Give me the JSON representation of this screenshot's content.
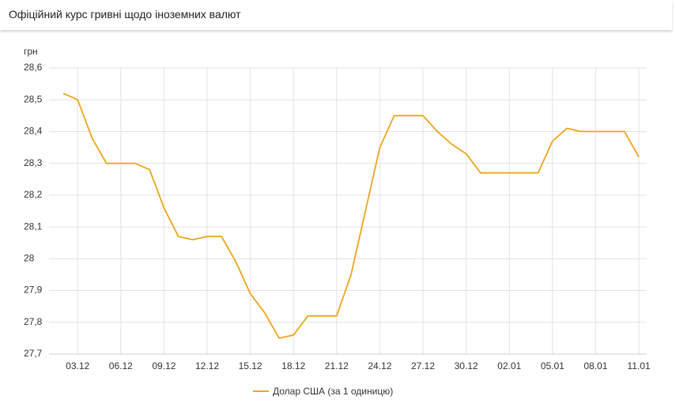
{
  "header": {
    "title": "Офіційний курс гривні щодо іноземних валют"
  },
  "chart_data": {
    "type": "line",
    "y_unit": "грн",
    "categories": [
      null,
      "03.12",
      null,
      null,
      "06.12",
      null,
      null,
      "09.12",
      null,
      null,
      "12.12",
      null,
      null,
      "15.12",
      null,
      null,
      "18.12",
      null,
      null,
      "21.12",
      null,
      null,
      "24.12",
      null,
      null,
      "27.12",
      null,
      null,
      "30.12",
      null,
      null,
      "02.01",
      null,
      null,
      "05.01",
      null,
      null,
      "08.01",
      null,
      null,
      "11.01"
    ],
    "series": [
      {
        "name": "Долар США (за 1 одиницю)",
        "color": "#eea61c",
        "values": [
          28.52,
          28.5,
          28.38,
          28.3,
          28.3,
          28.3,
          28.28,
          28.16,
          28.07,
          28.06,
          28.07,
          28.07,
          27.99,
          27.89,
          27.83,
          27.75,
          27.76,
          27.82,
          27.82,
          27.82,
          27.95,
          28.15,
          28.35,
          28.45,
          28.45,
          28.45,
          28.4,
          28.36,
          28.33,
          28.27,
          28.27,
          28.27,
          28.27,
          28.27,
          28.37,
          28.41,
          28.4,
          28.4,
          28.4,
          28.4,
          28.32
        ]
      }
    ],
    "ylim": [
      27.7,
      28.6
    ],
    "yticks": [
      {
        "value": 27.7,
        "label": "27,7"
      },
      {
        "value": 27.8,
        "label": "27,8"
      },
      {
        "value": 27.9,
        "label": "27,9"
      },
      28,
      {
        "value": 28.1,
        "label": "28,1"
      },
      {
        "value": 28.2,
        "label": "28,2"
      },
      {
        "value": 28.3,
        "label": "28,3"
      },
      {
        "value": 28.4,
        "label": "28,4"
      },
      {
        "value": 28.5,
        "label": "28,5"
      },
      {
        "value": 28.6,
        "label": "28,6"
      }
    ],
    "grid": true,
    "legend": "bottom"
  }
}
